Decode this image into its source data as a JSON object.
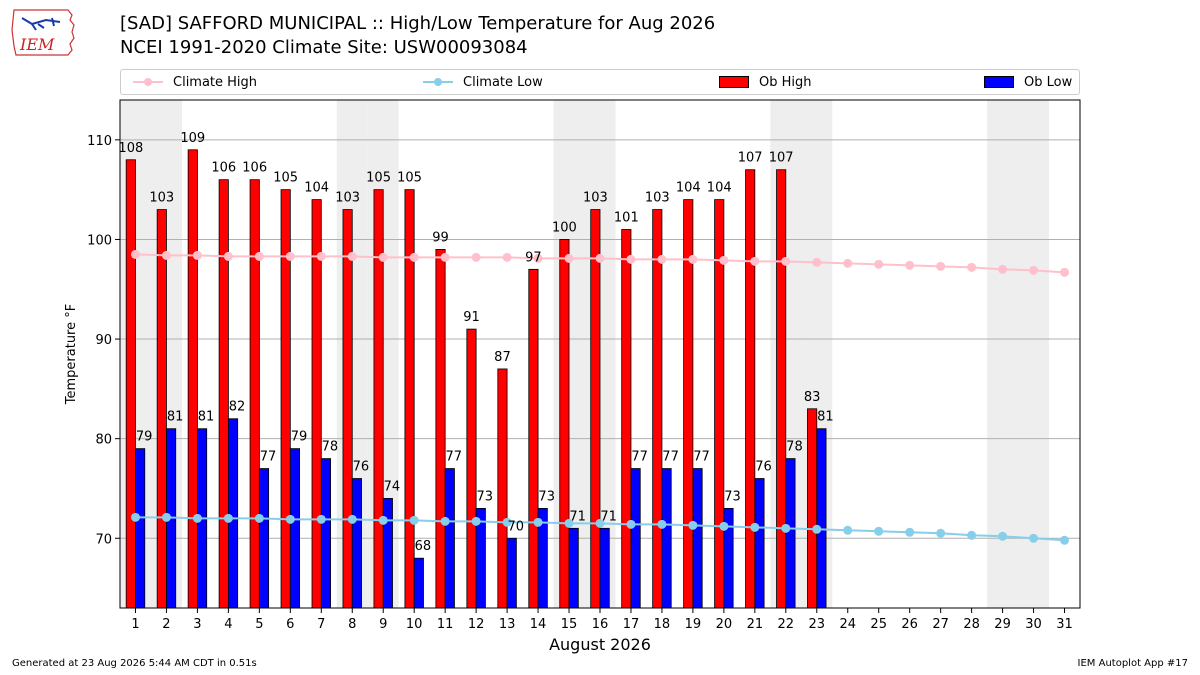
{
  "header": {
    "title_line1": "[SAD] SAFFORD MUNICIPAL :: High/Low Temperature for Aug 2026",
    "title_line2": "NCEI 1991-2020 Climate Site: USW00093084",
    "logo_text": "IEM"
  },
  "legend": {
    "climate_high": "Climate High",
    "climate_low": "Climate Low",
    "ob_high": "Ob High",
    "ob_low": "Ob Low"
  },
  "footer": {
    "generated": "Generated at 23 Aug 2026 5:44 AM CDT in 0.51s",
    "app": "IEM Autoplot App #17"
  },
  "colors": {
    "ob_high": "#ff0000",
    "ob_low": "#0000ff",
    "climate_high": "#ffc0cb",
    "climate_low": "#87ceeb",
    "weekend_shade": "#eeeeee",
    "grid": "#b0b0b0"
  },
  "chart_data": {
    "type": "bar",
    "xlabel": "August 2026",
    "ylabel": "Temperature °F",
    "xlim": [
      0.5,
      31.5
    ],
    "ylim": [
      63,
      114
    ],
    "yticks": [
      70,
      80,
      90,
      100,
      110
    ],
    "grid": "horizontal",
    "legend_position": "top",
    "days": [
      1,
      2,
      3,
      4,
      5,
      6,
      7,
      8,
      9,
      10,
      11,
      12,
      13,
      14,
      15,
      16,
      17,
      18,
      19,
      20,
      21,
      22,
      23,
      24,
      25,
      26,
      27,
      28,
      29,
      30,
      31
    ],
    "weekend_days": [
      1,
      2,
      8,
      9,
      15,
      16,
      22,
      23,
      29,
      30
    ],
    "ob_high": [
      108,
      103,
      109,
      106,
      106,
      105,
      104,
      103,
      105,
      105,
      99,
      91,
      87,
      97,
      100,
      103,
      101,
      103,
      104,
      104,
      107,
      107,
      83
    ],
    "ob_low": [
      79,
      81,
      81,
      82,
      77,
      79,
      78,
      76,
      74,
      68,
      77,
      73,
      70,
      73,
      71,
      71,
      77,
      77,
      77,
      73,
      76,
      78,
      81
    ],
    "climate_high": [
      98.5,
      98.4,
      98.4,
      98.3,
      98.3,
      98.3,
      98.3,
      98.3,
      98.2,
      98.2,
      98.2,
      98.2,
      98.2,
      98.1,
      98.1,
      98.1,
      98.0,
      98.0,
      98.0,
      97.9,
      97.8,
      97.8,
      97.7,
      97.6,
      97.5,
      97.4,
      97.3,
      97.2,
      97.0,
      96.9,
      96.7
    ],
    "climate_low": [
      72.1,
      72.1,
      72.0,
      72.0,
      72.0,
      71.9,
      71.9,
      71.9,
      71.8,
      71.8,
      71.7,
      71.7,
      71.6,
      71.6,
      71.5,
      71.5,
      71.4,
      71.4,
      71.3,
      71.2,
      71.1,
      71.0,
      70.9,
      70.8,
      70.7,
      70.6,
      70.5,
      70.3,
      70.2,
      70.0,
      69.8
    ]
  }
}
